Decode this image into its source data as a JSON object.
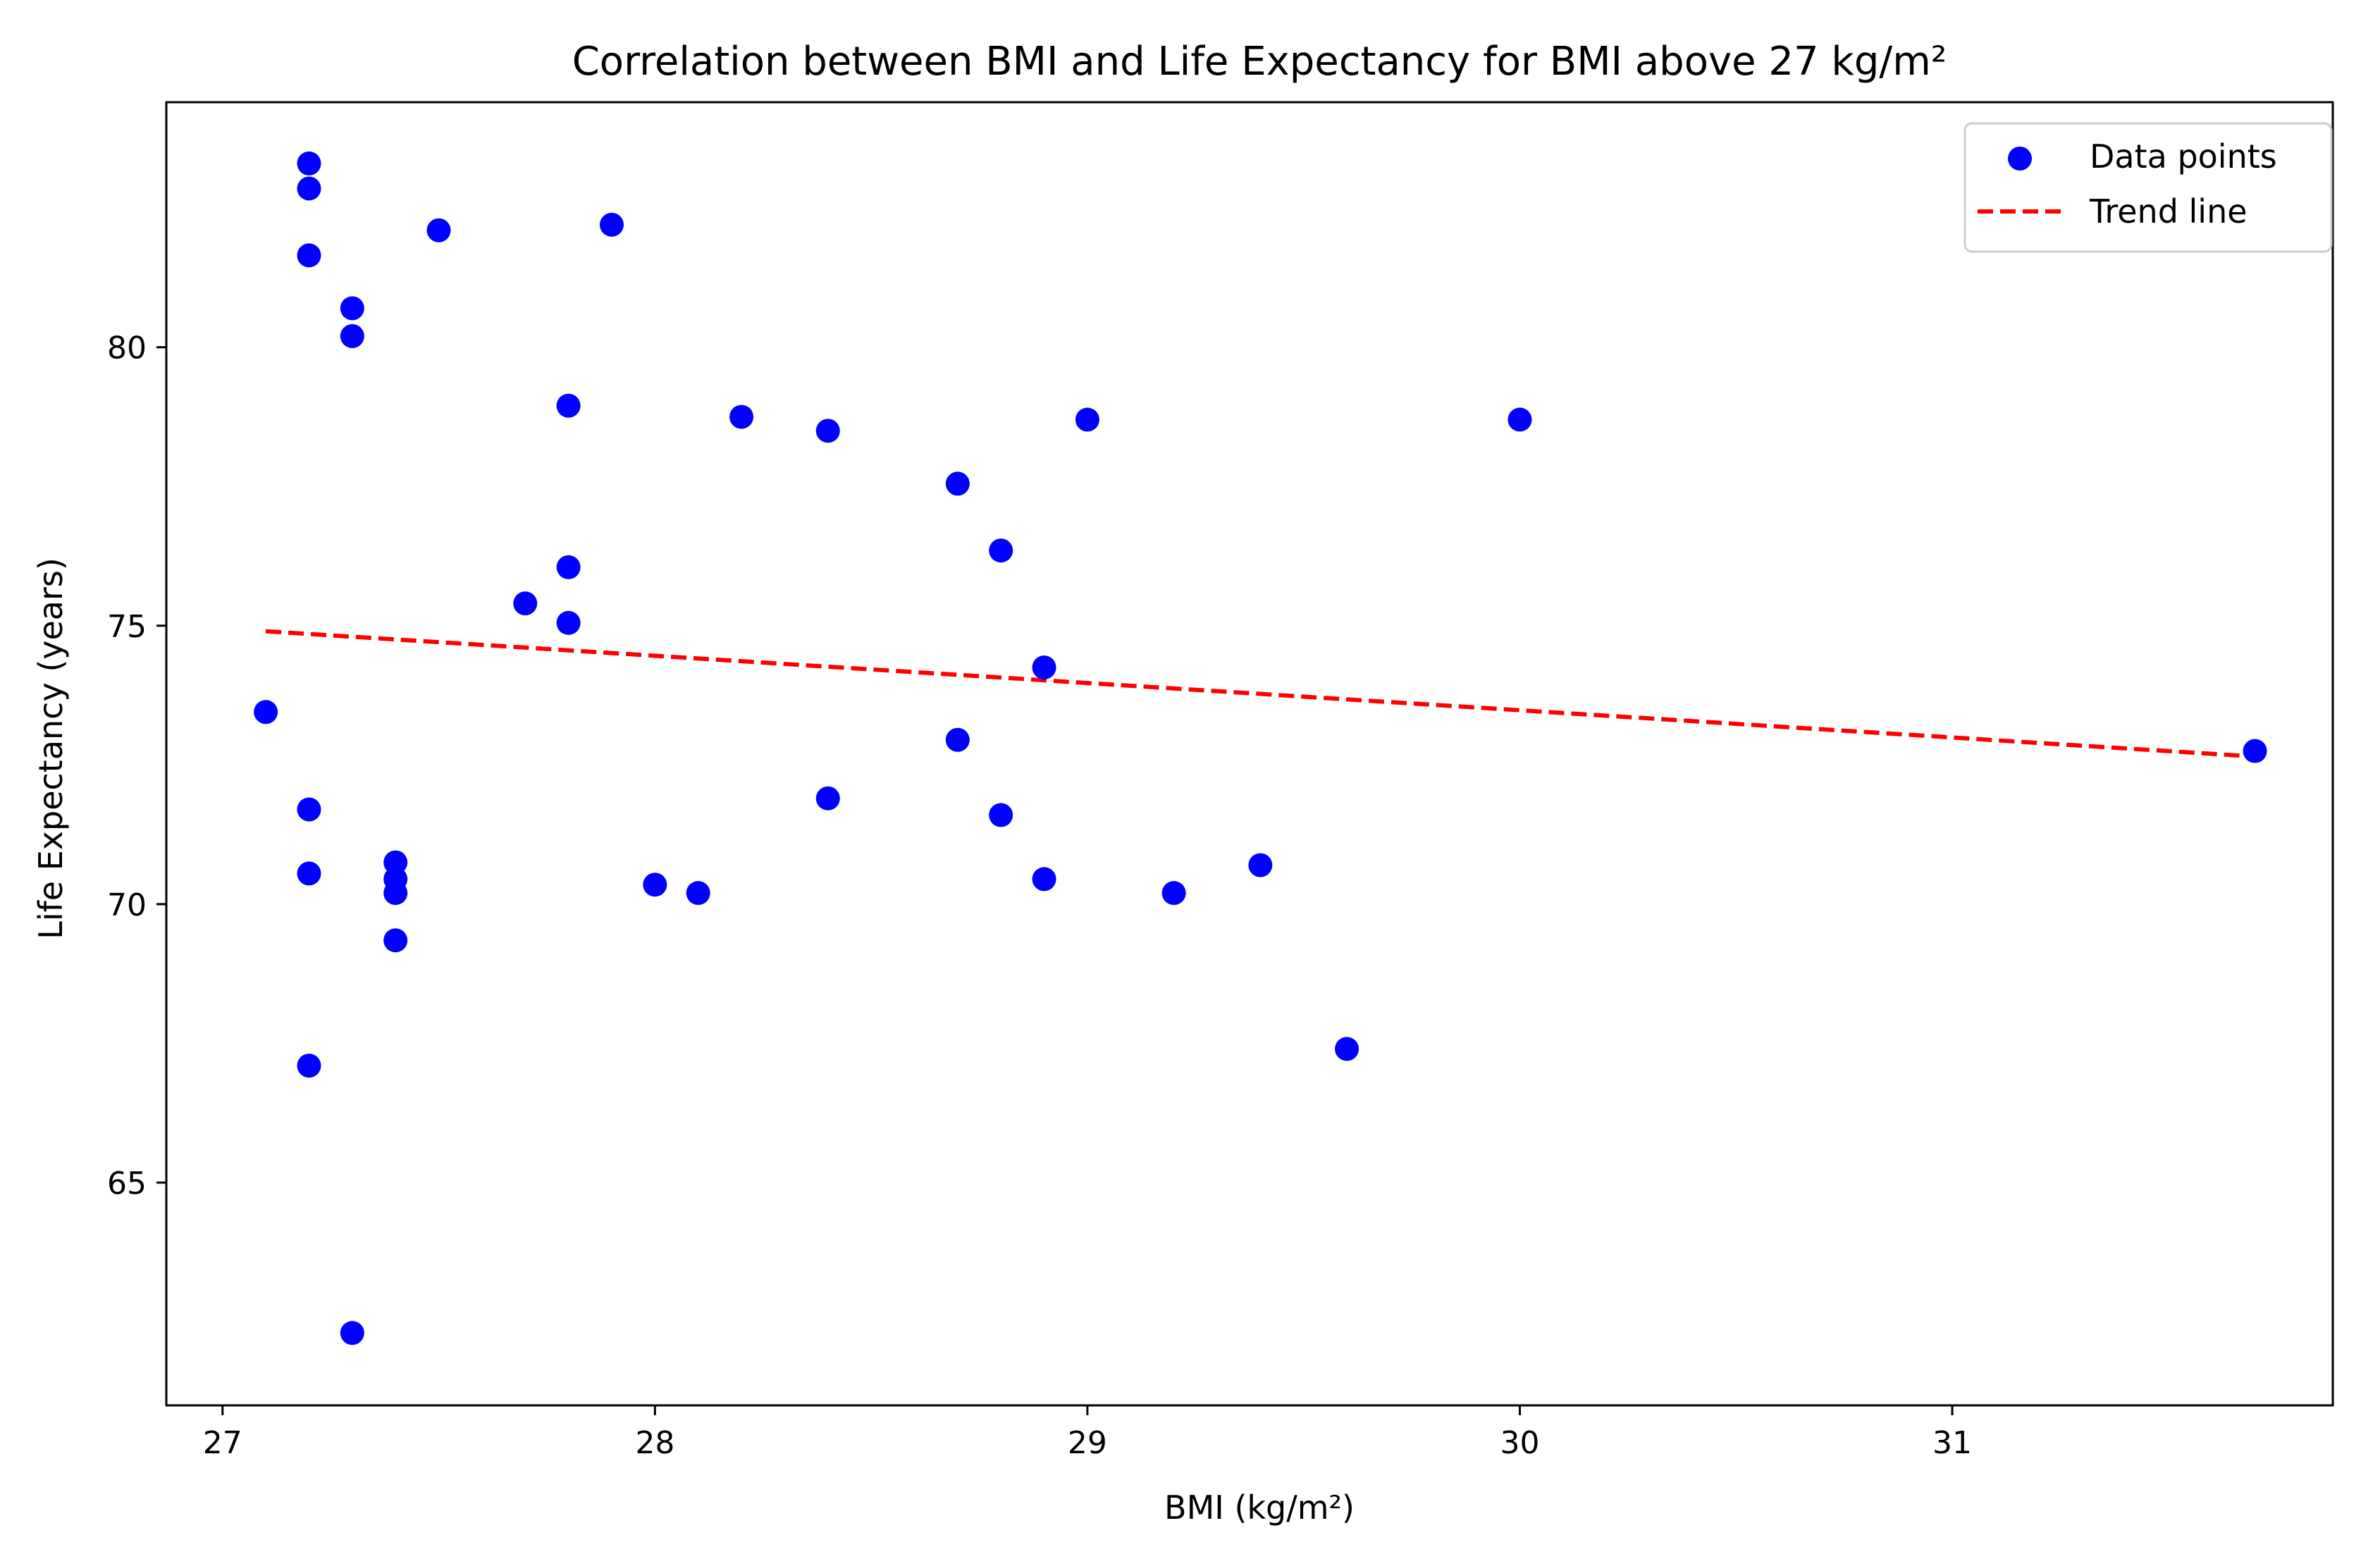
{
  "chart_data": {
    "type": "scatter",
    "title": "Correlation between BMI and Life Expectancy for BMI above 27 kg/m²",
    "xlabel": "BMI (kg/m²)",
    "ylabel": "Life Expectancy (years)",
    "xlim": [
      26.87,
      31.88
    ],
    "ylim": [
      61.0,
      84.4
    ],
    "xticks": [
      27,
      28,
      29,
      30,
      31
    ],
    "yticks": [
      65,
      70,
      75,
      80
    ],
    "grid": false,
    "legend_position": "top-right",
    "colors": {
      "points": "#0000ff",
      "trend": "#ff0000"
    },
    "series": [
      {
        "name": "Data points",
        "kind": "scatter",
        "points": [
          {
            "x": 27.1,
            "y": 73.45
          },
          {
            "x": 27.2,
            "y": 83.3
          },
          {
            "x": 27.2,
            "y": 82.85
          },
          {
            "x": 27.2,
            "y": 81.65
          },
          {
            "x": 27.2,
            "y": 71.7
          },
          {
            "x": 27.2,
            "y": 70.55
          },
          {
            "x": 27.2,
            "y": 67.1
          },
          {
            "x": 27.3,
            "y": 80.7
          },
          {
            "x": 27.3,
            "y": 80.2
          },
          {
            "x": 27.3,
            "y": 62.3
          },
          {
            "x": 27.4,
            "y": 70.75
          },
          {
            "x": 27.4,
            "y": 70.45
          },
          {
            "x": 27.4,
            "y": 70.2
          },
          {
            "x": 27.4,
            "y": 69.35
          },
          {
            "x": 27.5,
            "y": 82.1
          },
          {
            "x": 27.7,
            "y": 75.4
          },
          {
            "x": 27.8,
            "y": 78.95
          },
          {
            "x": 27.8,
            "y": 76.05
          },
          {
            "x": 27.8,
            "y": 75.05
          },
          {
            "x": 27.9,
            "y": 82.2
          },
          {
            "x": 28.0,
            "y": 70.35
          },
          {
            "x": 28.1,
            "y": 70.2
          },
          {
            "x": 28.2,
            "y": 78.75
          },
          {
            "x": 28.4,
            "y": 78.5
          },
          {
            "x": 28.4,
            "y": 71.9
          },
          {
            "x": 28.7,
            "y": 77.55
          },
          {
            "x": 28.7,
            "y": 72.95
          },
          {
            "x": 28.8,
            "y": 76.35
          },
          {
            "x": 28.8,
            "y": 71.6
          },
          {
            "x": 28.9,
            "y": 74.25
          },
          {
            "x": 28.9,
            "y": 70.45
          },
          {
            "x": 29.0,
            "y": 78.7
          },
          {
            "x": 29.2,
            "y": 70.2
          },
          {
            "x": 29.4,
            "y": 70.7
          },
          {
            "x": 29.6,
            "y": 67.4
          },
          {
            "x": 30.0,
            "y": 78.7
          },
          {
            "x": 31.7,
            "y": 72.75
          }
        ]
      },
      {
        "name": "Trend line",
        "kind": "line",
        "style": "dashed",
        "points": [
          {
            "x": 27.1,
            "y": 74.9
          },
          {
            "x": 31.7,
            "y": 72.65
          }
        ]
      }
    ]
  }
}
